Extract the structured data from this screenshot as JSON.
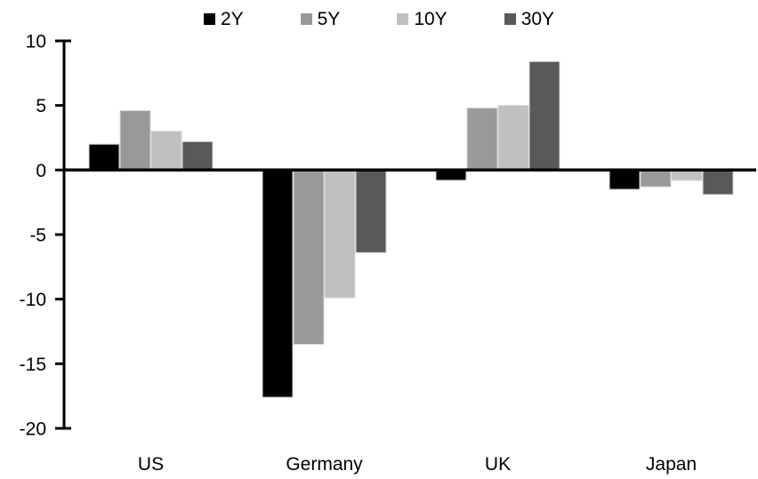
{
  "chart_data": {
    "type": "bar",
    "title": "",
    "categories": [
      "US",
      "Germany",
      "UK",
      "Japan"
    ],
    "series": [
      {
        "name": "2Y",
        "color": "#000000",
        "values": [
          2.0,
          -17.6,
          -0.8,
          -1.5
        ]
      },
      {
        "name": "5Y",
        "color": "#999999",
        "values": [
          4.6,
          -13.5,
          4.8,
          -1.3
        ]
      },
      {
        "name": "10Y",
        "color": "#c0c0c0",
        "values": [
          3.0,
          -9.9,
          5.0,
          -0.8
        ]
      },
      {
        "name": "30Y",
        "color": "#595959",
        "values": [
          2.2,
          -6.4,
          8.4,
          -1.9
        ]
      }
    ],
    "xlabel": "",
    "ylabel": "",
    "ylim": [
      -20,
      10
    ],
    "ytick_step": 5,
    "yticks": [
      "10",
      "5",
      "0",
      "-5",
      "-10",
      "-15",
      "-20"
    ],
    "grid": false,
    "legend_position": "top-center",
    "axis_color": "#000000",
    "bar_border_color": "#d9d9d9",
    "background_color": "#ffffff"
  }
}
